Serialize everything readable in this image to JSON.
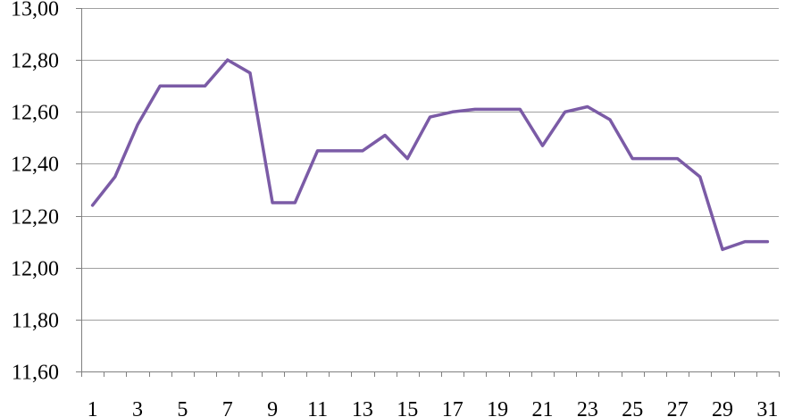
{
  "chart_data": {
    "type": "line",
    "title": "",
    "xlabel": "",
    "ylabel": "",
    "x": [
      1,
      2,
      3,
      4,
      5,
      6,
      7,
      8,
      9,
      10,
      11,
      12,
      13,
      14,
      15,
      16,
      17,
      18,
      19,
      20,
      21,
      22,
      23,
      24,
      25,
      26,
      27,
      28,
      29,
      30,
      31
    ],
    "x_tick_labels": [
      "1",
      "3",
      "5",
      "7",
      "9",
      "11",
      "13",
      "15",
      "17",
      "19",
      "21",
      "23",
      "25",
      "27",
      "29",
      "31"
    ],
    "x_tick_values": [
      1,
      3,
      5,
      7,
      9,
      11,
      13,
      15,
      17,
      19,
      21,
      23,
      25,
      27,
      29,
      31
    ],
    "y_tick_labels": [
      "11,60",
      "11,80",
      "12,00",
      "12,20",
      "12,40",
      "12,60",
      "12,80",
      "13,00"
    ],
    "y_tick_values": [
      11.6,
      11.8,
      12.0,
      12.2,
      12.4,
      12.6,
      12.8,
      13.0
    ],
    "ylim": [
      11.6,
      13.0
    ],
    "xlim": [
      0.5,
      31.5
    ],
    "grid": true,
    "legend": "none",
    "series": [
      {
        "color": "#7b5ba6",
        "values": [
          12.24,
          12.35,
          12.55,
          12.7,
          12.7,
          12.7,
          12.8,
          12.75,
          12.25,
          12.25,
          12.45,
          12.45,
          12.45,
          12.51,
          12.42,
          12.58,
          12.6,
          12.61,
          12.61,
          12.61,
          12.47,
          12.6,
          12.62,
          12.57,
          12.42,
          12.42,
          12.42,
          12.35,
          12.07,
          12.1,
          12.1
        ]
      }
    ]
  }
}
